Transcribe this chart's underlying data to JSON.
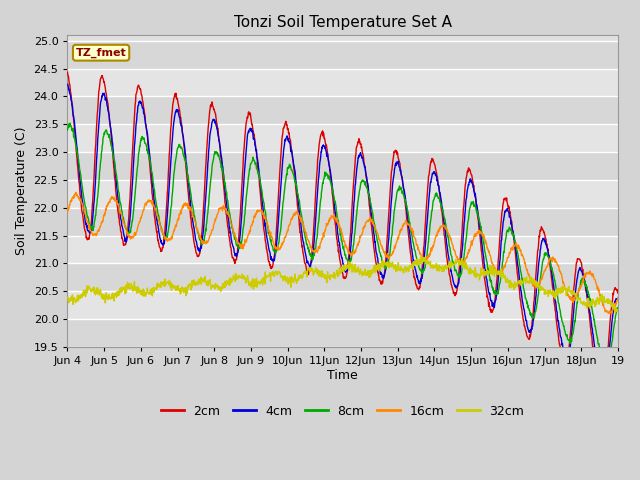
{
  "title": "Tonzi Soil Temperature Set A",
  "xlabel": "Time",
  "ylabel": "Soil Temperature (C)",
  "ylim": [
    19.5,
    25.1
  ],
  "annotation": "TZ_fmet",
  "legend_labels": [
    "2cm",
    "4cm",
    "8cm",
    "16cm",
    "32cm"
  ],
  "line_colors": [
    "#dd0000",
    "#0000dd",
    "#00aa00",
    "#ff8800",
    "#cccc00"
  ],
  "background_color": "#d4d4d4",
  "plot_bg_color": "#e0e0e0",
  "grid_color": "#ffffff",
  "annotation_bg": "#ffffcc",
  "annotation_border": "#aa8800",
  "tick_labels": [
    "Jun 4",
    "Jun 5",
    "Jun 6",
    "Jun 7",
    "Jun 8",
    "Jun 9",
    "10Jun",
    "11Jun",
    "12Jun",
    "13Jun",
    "14Jun",
    "15Jun",
    "16Jun",
    "17Jun",
    "18Jun",
    "19"
  ],
  "n_days": 15,
  "pts_per_day": 96
}
